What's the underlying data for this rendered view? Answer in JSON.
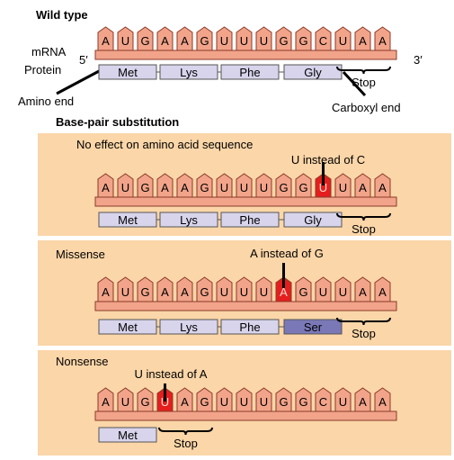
{
  "titles": {
    "wild_type": "Wild type",
    "section": "Base-pair substitution"
  },
  "labels": {
    "mrna": "mRNA",
    "protein": "Protein",
    "five_prime": "5′",
    "three_prime": "3′",
    "amino_end": "Amino end",
    "carboxyl_end": "Carboxyl end",
    "stop": "Stop"
  },
  "colors": {
    "base_fill": "#f2a48a",
    "base_stroke": "#8b3a28",
    "backbone": "#f2a48a",
    "mutated_base": "#e41e1e",
    "aa_fill": "#d8d4ec",
    "aa_mutated": "#7b78b8",
    "panel_bg": "#fbd6a8"
  },
  "rows": [
    {
      "id": "wild",
      "bases": [
        "A",
        "U",
        "G",
        "A",
        "A",
        "G",
        "U",
        "U",
        "U",
        "G",
        "G",
        "C",
        "U",
        "A",
        "A"
      ],
      "mutated_index": null,
      "amino_acids": [
        "Met",
        "Lys",
        "Phe",
        "Gly"
      ],
      "mutated_aa_index": null,
      "stop_codon_index": 4
    },
    {
      "id": "silent",
      "panel_title": "No effect on amino acid sequence",
      "annotation": "U instead of C",
      "bases": [
        "A",
        "U",
        "G",
        "A",
        "A",
        "G",
        "U",
        "U",
        "U",
        "G",
        "G",
        "U",
        "U",
        "A",
        "A"
      ],
      "mutated_index": 11,
      "amino_acids": [
        "Met",
        "Lys",
        "Phe",
        "Gly"
      ],
      "mutated_aa_index": null,
      "stop_codon_index": 4
    },
    {
      "id": "missense",
      "panel_title": "Missense",
      "annotation": "A instead of G",
      "bases": [
        "A",
        "U",
        "G",
        "A",
        "A",
        "G",
        "U",
        "U",
        "U",
        "A",
        "G",
        "U",
        "U",
        "A",
        "A"
      ],
      "mutated_index": 9,
      "amino_acids": [
        "Met",
        "Lys",
        "Phe",
        "Ser"
      ],
      "mutated_aa_index": 3,
      "stop_codon_index": 4
    },
    {
      "id": "nonsense",
      "panel_title": "Nonsense",
      "annotation": "U instead of A",
      "bases": [
        "A",
        "U",
        "G",
        "U",
        "A",
        "G",
        "U",
        "U",
        "U",
        "G",
        "G",
        "C",
        "U",
        "A",
        "A"
      ],
      "mutated_index": 3,
      "amino_acids": [
        "Met"
      ],
      "mutated_aa_index": null,
      "stop_codon_index": 1
    }
  ]
}
